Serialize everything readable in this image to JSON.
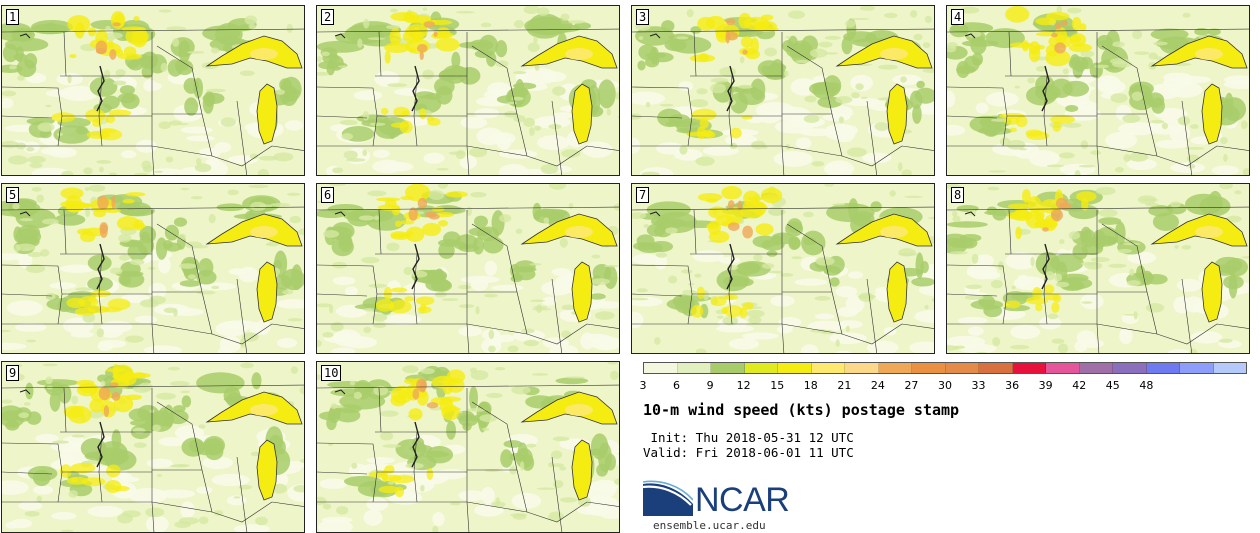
{
  "panels": [
    {
      "label": "1"
    },
    {
      "label": "2"
    },
    {
      "label": "3"
    },
    {
      "label": "4"
    },
    {
      "label": "5"
    },
    {
      "label": "6"
    },
    {
      "label": "7"
    },
    {
      "label": "8"
    },
    {
      "label": "9"
    },
    {
      "label": "10"
    }
  ],
  "colorbar": {
    "colors": [
      "#f2f7dd",
      "#e2efbe",
      "#a8cc6a",
      "#dfeb1e",
      "#f5ec12",
      "#fde96f",
      "#fcd88a",
      "#efa758",
      "#ea9043",
      "#e58b49",
      "#d8703f",
      "#e8103c",
      "#e4559a",
      "#a06fa7",
      "#8a6fbd",
      "#6f7af0",
      "#8c9ef9",
      "#b5c9fb"
    ],
    "tick_labels": [
      "3",
      "6",
      "9",
      "12",
      "15",
      "18",
      "21",
      "24",
      "27",
      "30",
      "33",
      "36",
      "39",
      "42",
      "45",
      "48"
    ]
  },
  "title": "10-m wind speed (kts) postage stamp",
  "init": " Init: Thu 2018-05-31 12 UTC",
  "valid": "Valid: Fri 2018-06-01 11 UTC",
  "logo": {
    "text": "NCAR",
    "url": "ensemble.ucar.edu",
    "color": "#1b3f7a"
  }
}
